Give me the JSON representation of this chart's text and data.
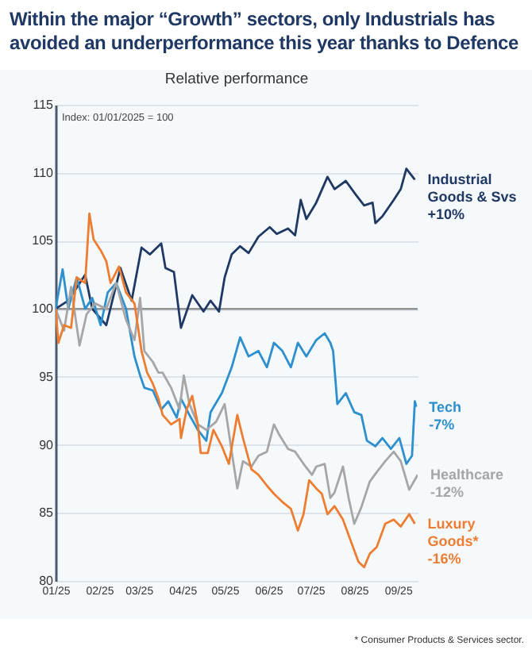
{
  "chart_data": {
    "type": "line",
    "title": "Within the major “Growth” sectors, only Industrials has avoided an underperformance this year thanks to Defence",
    "subtitle": "Relative performance",
    "xlim": [
      "2025-01-01",
      "2025-09-15"
    ],
    "xticks": [
      {
        "value": "2025-01-01",
        "label": "01/25"
      },
      {
        "value": "2025-02-01",
        "label": "02/25"
      },
      {
        "value": "2025-03-01",
        "label": "03/25"
      },
      {
        "value": "2025-04-01",
        "label": "04/25"
      },
      {
        "value": "2025-05-01",
        "label": "05/25"
      },
      {
        "value": "2025-06-01",
        "label": "06/25"
      },
      {
        "value": "2025-07-01",
        "label": "07/25"
      },
      {
        "value": "2025-08-01",
        "label": "08/25"
      },
      {
        "value": "2025-09-01",
        "label": "09/25"
      }
    ],
    "ylim": [
      80,
      115
    ],
    "yticks": [
      80,
      85,
      90,
      95,
      100,
      105,
      110,
      115
    ],
    "grid": "y",
    "legend": false,
    "ref_lines": [
      {
        "axis": "y",
        "value": 100,
        "color": "#7f7f7f"
      }
    ],
    "series": [
      {
        "name": "Industrial Goods & Svs",
        "color": "#1f3864",
        "x": [
          "2025-01-01",
          "2025-01-10",
          "2025-01-22",
          "2025-01-27",
          "2025-02-06",
          "2025-02-16",
          "2025-02-24",
          "2025-03-03",
          "2025-03-09",
          "2025-03-17",
          "2025-03-20",
          "2025-03-26",
          "2025-03-31",
          "2025-04-08",
          "2025-04-16",
          "2025-04-21",
          "2025-04-27",
          "2025-05-01",
          "2025-05-06",
          "2025-05-12",
          "2025-05-18",
          "2025-05-25",
          "2025-06-02",
          "2025-06-07",
          "2025-06-15",
          "2025-06-20",
          "2025-06-24",
          "2025-06-28",
          "2025-07-05",
          "2025-07-13",
          "2025-07-18",
          "2025-07-26",
          "2025-08-02",
          "2025-08-08",
          "2025-08-14",
          "2025-08-16",
          "2025-08-21",
          "2025-08-29",
          "2025-09-03",
          "2025-09-07",
          "2025-09-13"
        ],
        "values": [
          100,
          100.6,
          102.5,
          100,
          98.8,
          103,
          100.6,
          104.5,
          104,
          104.8,
          103,
          102.7,
          98.6,
          101,
          99.8,
          100.6,
          99.8,
          102.3,
          104,
          104.6,
          104.1,
          105.3,
          106,
          105.5,
          105.9,
          105.4,
          108,
          106.6,
          107.8,
          109.7,
          108.8,
          109.4,
          108.4,
          107.6,
          107.8,
          106.3,
          106.8,
          108,
          108.8,
          110.3,
          109.5
        ]
      },
      {
        "name": "Tech",
        "color": "#2e8fce",
        "x": [
          "2025-01-01",
          "2025-01-06",
          "2025-01-10",
          "2025-01-16",
          "2025-01-22",
          "2025-01-27",
          "2025-02-02",
          "2025-02-07",
          "2025-02-13",
          "2025-02-20",
          "2025-02-26",
          "2025-03-02",
          "2025-03-05",
          "2025-03-11",
          "2025-03-17",
          "2025-03-22",
          "2025-03-28",
          "2025-03-31",
          "2025-04-06",
          "2025-04-12",
          "2025-04-18",
          "2025-04-21",
          "2025-04-29",
          "2025-05-06",
          "2025-05-12",
          "2025-05-18",
          "2025-05-25",
          "2025-05-31",
          "2025-06-05",
          "2025-06-11",
          "2025-06-17",
          "2025-06-22",
          "2025-06-28",
          "2025-07-05",
          "2025-07-11",
          "2025-07-15",
          "2025-07-17",
          "2025-07-20",
          "2025-07-26",
          "2025-08-01",
          "2025-08-06",
          "2025-08-10",
          "2025-08-16",
          "2025-08-21",
          "2025-08-27",
          "2025-09-02",
          "2025-09-07",
          "2025-09-11",
          "2025-09-13",
          "2025-09-14"
        ],
        "values": [
          100,
          102.9,
          100,
          102.3,
          100,
          100.8,
          98.8,
          101.2,
          101.9,
          100,
          96.5,
          95.1,
          94.2,
          94,
          92.6,
          93.2,
          92,
          93.4,
          92.2,
          91.1,
          90.3,
          92.4,
          93.8,
          95.7,
          97.9,
          96.5,
          96.9,
          95.7,
          97.5,
          96.9,
          95.7,
          97.5,
          96.5,
          97.7,
          98.2,
          97.5,
          96.9,
          93,
          93.8,
          92.4,
          92.2,
          90.3,
          89.9,
          90.5,
          89.7,
          90.5,
          88.6,
          89.2,
          93.2,
          92.8
        ]
      },
      {
        "name": "Healthcare",
        "color": "#a6a6a6",
        "x": [
          "2025-01-01",
          "2025-01-07",
          "2025-01-12",
          "2025-01-18",
          "2025-01-23",
          "2025-01-29",
          "2025-02-06",
          "2025-02-13",
          "2025-02-20",
          "2025-02-26",
          "2025-03-02",
          "2025-03-05",
          "2025-03-11",
          "2025-03-15",
          "2025-03-18",
          "2025-03-24",
          "2025-03-30",
          "2025-04-02",
          "2025-04-06",
          "2025-04-12",
          "2025-04-18",
          "2025-04-25",
          "2025-05-01",
          "2025-05-06",
          "2025-05-10",
          "2025-05-14",
          "2025-05-20",
          "2025-05-25",
          "2025-05-31",
          "2025-06-05",
          "2025-06-09",
          "2025-06-15",
          "2025-06-20",
          "2025-06-26",
          "2025-07-02",
          "2025-07-05",
          "2025-07-11",
          "2025-07-15",
          "2025-07-18",
          "2025-07-24",
          "2025-07-28",
          "2025-08-01",
          "2025-08-06",
          "2025-08-12",
          "2025-08-17",
          "2025-08-23",
          "2025-08-29",
          "2025-09-03",
          "2025-09-09",
          "2025-09-15"
        ],
        "values": [
          100,
          98.4,
          101.6,
          97.3,
          99.6,
          100.4,
          100,
          101.9,
          99.2,
          97.7,
          100.8,
          96.9,
          96.1,
          95.3,
          95.3,
          94.2,
          92.6,
          95.1,
          93,
          91.5,
          91.1,
          91.7,
          93,
          89.5,
          86.8,
          88.8,
          88.4,
          89.2,
          89.5,
          91.5,
          90.7,
          89.7,
          89.5,
          88.6,
          87.8,
          88.4,
          88.6,
          86.1,
          86.5,
          88.4,
          86.1,
          84.2,
          85.4,
          87.3,
          88,
          88.8,
          89.5,
          88.8,
          86.7,
          87.8
        ]
      },
      {
        "name": "Luxury Goods*",
        "color": "#ed7d31",
        "x": [
          "2025-01-01",
          "2025-01-03",
          "2025-01-07",
          "2025-01-12",
          "2025-01-16",
          "2025-01-22",
          "2025-01-25",
          "2025-01-28",
          "2025-02-02",
          "2025-02-06",
          "2025-02-09",
          "2025-02-15",
          "2025-02-20",
          "2025-02-26",
          "2025-03-03",
          "2025-03-07",
          "2025-03-11",
          "2025-03-15",
          "2025-03-18",
          "2025-03-24",
          "2025-03-30",
          "2025-03-31",
          "2025-04-04",
          "2025-04-08",
          "2025-04-12",
          "2025-04-14",
          "2025-04-19",
          "2025-04-23",
          "2025-04-29",
          "2025-05-04",
          "2025-05-10",
          "2025-05-14",
          "2025-05-20",
          "2025-05-25",
          "2025-05-31",
          "2025-06-05",
          "2025-06-11",
          "2025-06-17",
          "2025-06-22",
          "2025-06-26",
          "2025-06-30",
          "2025-07-05",
          "2025-07-09",
          "2025-07-13",
          "2025-07-18",
          "2025-07-24",
          "2025-07-30",
          "2025-08-04",
          "2025-08-08",
          "2025-08-12",
          "2025-08-17",
          "2025-08-23",
          "2025-08-29",
          "2025-09-03",
          "2025-09-09",
          "2025-09-13"
        ],
        "values": [
          100,
          97.5,
          98.8,
          98.6,
          102.3,
          101.9,
          107,
          105.1,
          104.3,
          103.5,
          101.9,
          103.1,
          101.2,
          100.4,
          96.9,
          95.3,
          94.5,
          93.4,
          92.2,
          91.5,
          91.9,
          90.5,
          92.6,
          93.6,
          91.5,
          89.4,
          89.4,
          91.1,
          89.9,
          88.6,
          92.2,
          90.5,
          88.2,
          87.8,
          87,
          86.4,
          85.8,
          85.3,
          83.7,
          84.9,
          87.4,
          86.8,
          86.4,
          84.9,
          85.5,
          84.5,
          82.8,
          81.4,
          81,
          82,
          82.5,
          84.2,
          84.5,
          84,
          84.9,
          84.2
        ]
      }
    ],
    "annotations": [
      "+10%",
      "-7%",
      "-12%",
      "-16%",
      "Index: 01/01/2025 = 100",
      "* Consumer Products & Services sector."
    ]
  }
}
